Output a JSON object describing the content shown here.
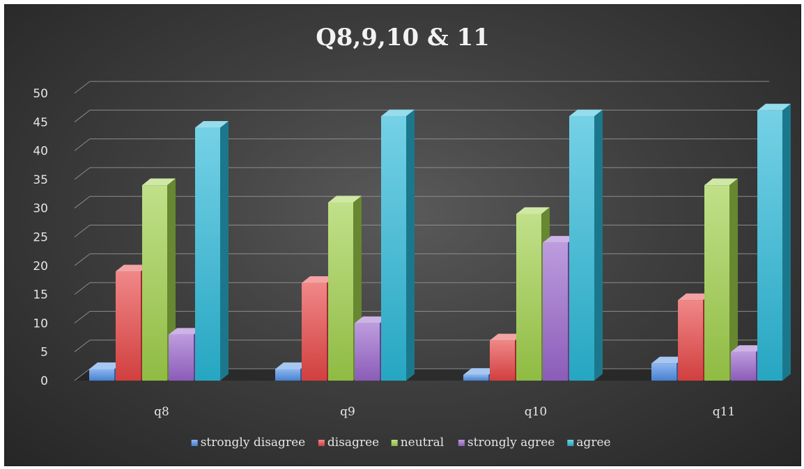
{
  "chart_data": {
    "type": "bar",
    "title": "Q8,9,10  & 11",
    "categories": [
      "q8",
      "q9",
      "q10",
      "q11"
    ],
    "series": [
      {
        "name": "strongly disagree",
        "color": "#4f8fe6",
        "values": [
          2,
          2,
          1,
          3
        ]
      },
      {
        "name": "disagree",
        "color": "#e84646",
        "values": [
          19,
          17,
          7,
          14
        ]
      },
      {
        "name": "neutral",
        "color": "#9fd04a",
        "values": [
          34,
          31,
          29,
          34
        ]
      },
      {
        "name": "strongly agree",
        "color": "#9a66cc",
        "values": [
          8,
          10,
          24,
          5
        ]
      },
      {
        "name": "agree",
        "color": "#2ab8d8",
        "values": [
          44,
          46,
          46,
          47
        ]
      }
    ],
    "y_ticks": [
      0,
      5,
      10,
      15,
      20,
      25,
      30,
      35,
      40,
      45,
      50
    ],
    "ylim": [
      0,
      50
    ],
    "xlabel": "",
    "ylabel": "",
    "grid": true,
    "legend_position": "bottom",
    "style": "3d-clustered-column"
  }
}
